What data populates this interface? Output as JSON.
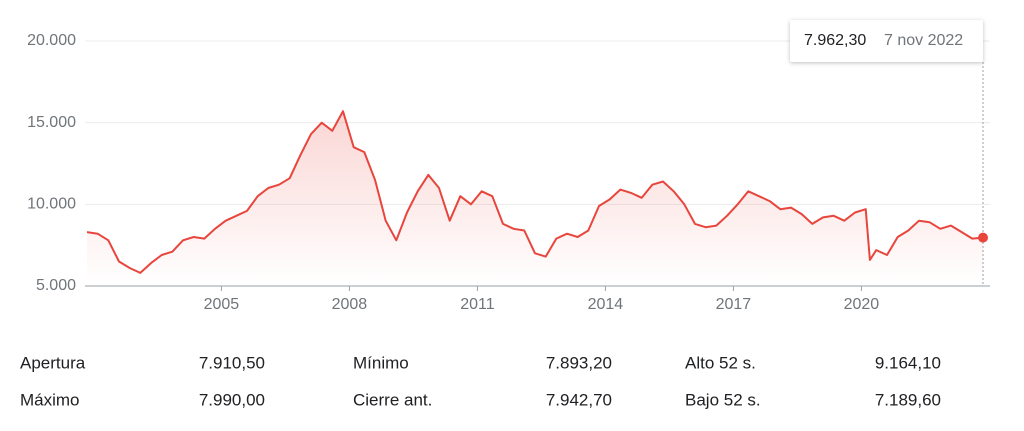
{
  "chart_data": {
    "type": "line",
    "x": [
      2001.85,
      2002.1,
      2002.35,
      2002.6,
      2002.85,
      2003.1,
      2003.35,
      2003.6,
      2003.85,
      2004.1,
      2004.35,
      2004.6,
      2004.85,
      2005.1,
      2005.35,
      2005.6,
      2005.85,
      2006.1,
      2006.35,
      2006.6,
      2006.85,
      2007.1,
      2007.35,
      2007.6,
      2007.85,
      2008.1,
      2008.35,
      2008.6,
      2008.85,
      2009.1,
      2009.35,
      2009.6,
      2009.85,
      2010.1,
      2010.35,
      2010.6,
      2010.85,
      2011.1,
      2011.35,
      2011.6,
      2011.85,
      2012.1,
      2012.35,
      2012.6,
      2012.85,
      2013.1,
      2013.35,
      2013.6,
      2013.85,
      2014.1,
      2014.35,
      2014.6,
      2014.85,
      2015.1,
      2015.35,
      2015.6,
      2015.85,
      2016.1,
      2016.35,
      2016.6,
      2016.85,
      2017.1,
      2017.35,
      2017.6,
      2017.85,
      2018.1,
      2018.35,
      2018.6,
      2018.85,
      2019.1,
      2019.35,
      2019.6,
      2019.85,
      2020.1,
      2020.2,
      2020.35,
      2020.6,
      2020.85,
      2021.1,
      2021.35,
      2021.6,
      2021.85,
      2022.1,
      2022.35,
      2022.6,
      2022.85
    ],
    "series": [
      {
        "color": "#e8453c",
        "values": [
          8300,
          8200,
          7800,
          6500,
          6100,
          5800,
          6400,
          6900,
          7100,
          7800,
          8000,
          7900,
          8500,
          9000,
          9300,
          9600,
          10500,
          11000,
          11200,
          11600,
          13000,
          14300,
          15000,
          14500,
          15700,
          13500,
          13200,
          11500,
          9000,
          7800,
          9500,
          10800,
          11800,
          11000,
          9000,
          10500,
          10000,
          10800,
          10500,
          8800,
          8500,
          8400,
          7000,
          6800,
          7900,
          8200,
          8000,
          8400,
          9900,
          10300,
          10900,
          10700,
          10400,
          11200,
          11400,
          10800,
          10000,
          8800,
          8600,
          8700,
          9300,
          10000,
          10800,
          10500,
          10200,
          9700,
          9800,
          9400,
          8800,
          9200,
          9300,
          9000,
          9500,
          9700,
          6600,
          7200,
          6900,
          8000,
          8400,
          9000,
          8900,
          8500,
          8700,
          8300,
          7900,
          7962.3
        ]
      }
    ],
    "xlim": [
      2001.85,
      2022.85
    ],
    "ylim": [
      5000,
      20000
    ],
    "xticks": [
      2005,
      2008,
      2011,
      2014,
      2017,
      2020
    ],
    "yticks": [
      {
        "value": 5000,
        "label": "5.000"
      },
      {
        "value": 10000,
        "label": "10.000"
      },
      {
        "value": 15000,
        "label": "15.000"
      },
      {
        "value": 20000,
        "label": "20.000"
      }
    ],
    "grid": true,
    "tooltip": {
      "value": 7962.3,
      "label": "7.962,30",
      "date": "7 nov 2022"
    }
  },
  "stats": [
    {
      "label": "Apertura",
      "value": "7.910,50"
    },
    {
      "label": "Máximo",
      "value": "7.990,00"
    },
    {
      "label": "Mínimo",
      "value": "7.893,20"
    },
    {
      "label": "Cierre ant.",
      "value": "7.942,70"
    },
    {
      "label": "Alto 52 s.",
      "value": "9.164,10"
    },
    {
      "label": "Bajo 52 s.",
      "value": "7.189,60"
    }
  ]
}
